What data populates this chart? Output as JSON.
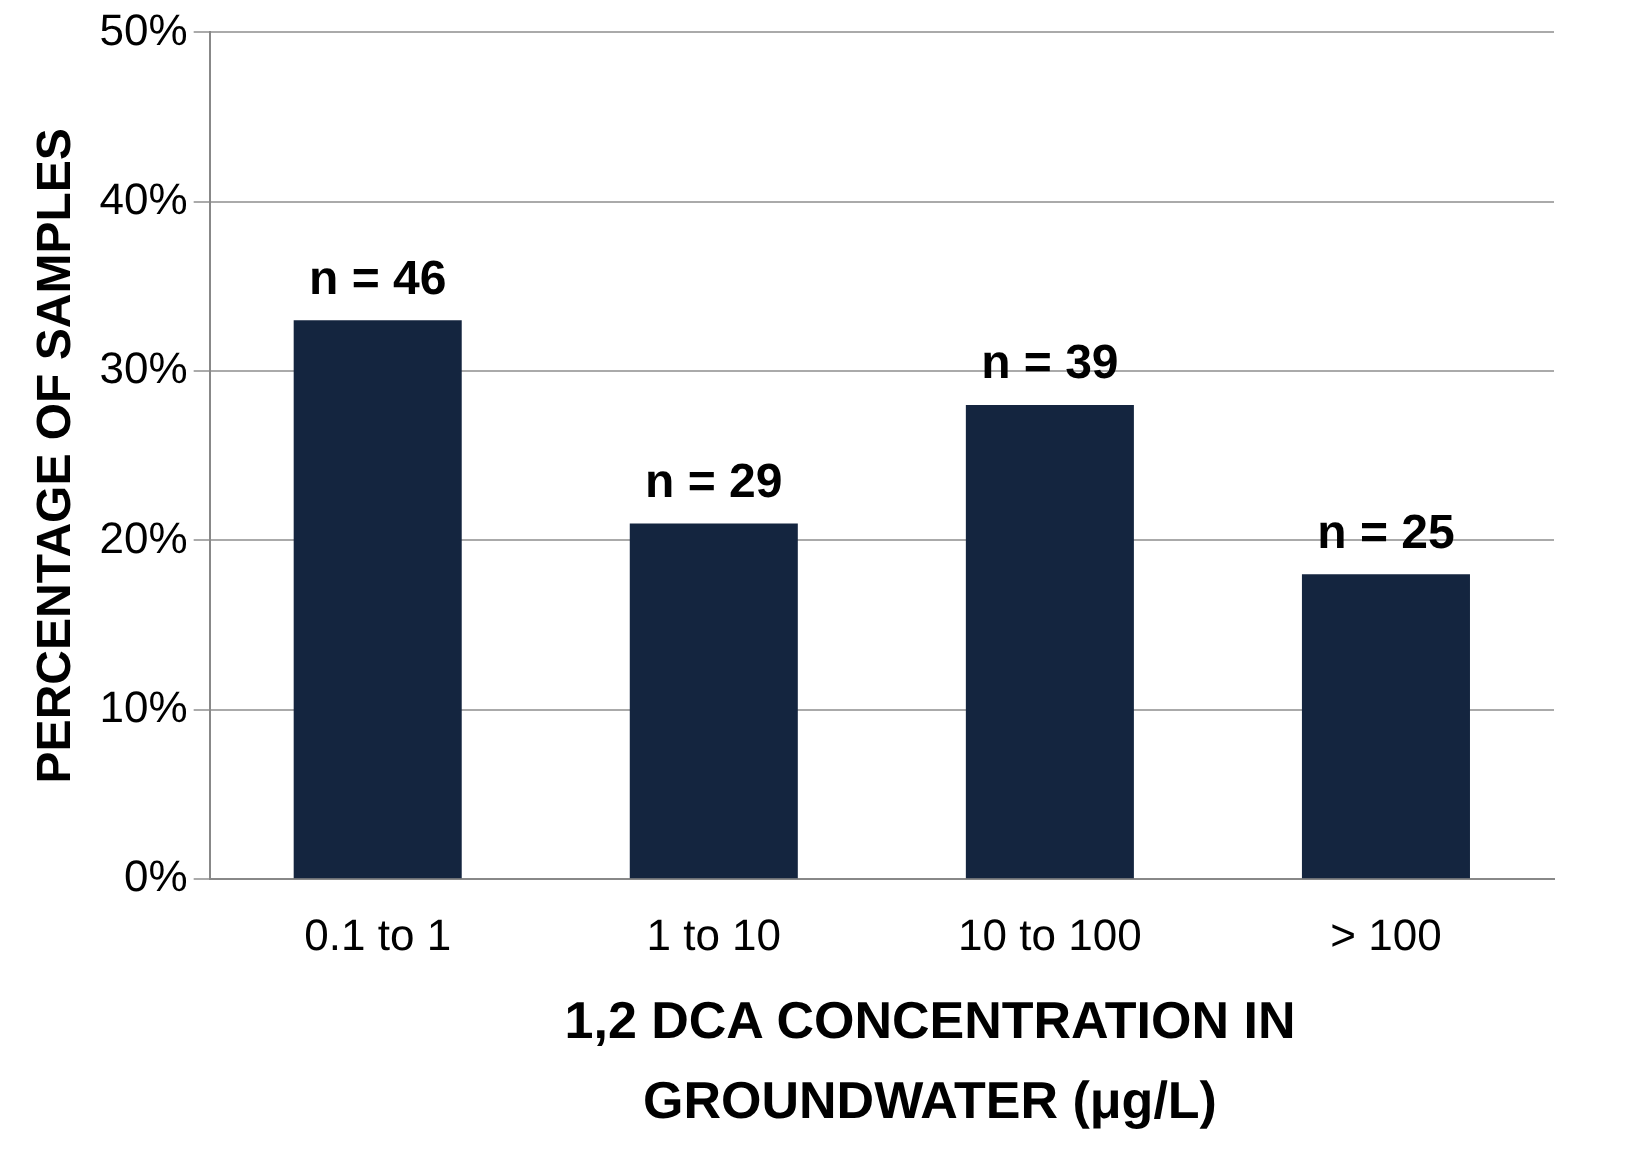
{
  "chart_data": {
    "type": "bar",
    "xlabel": "1,2 DCA CONCENTRATION IN GROUNDWATER (μg/L)",
    "ylabel": "PERCENTAGE OF SAMPLES",
    "categories": [
      "0.1 to 1",
      "1 to 10",
      "10 to 100",
      "> 100"
    ],
    "values": [
      33,
      21,
      28,
      18
    ],
    "color": "#14253f",
    "annotations": [
      {
        "text": "n = 46",
        "x": "0.1 to 1",
        "y": 33
      },
      {
        "text": "n = 29",
        "x": "1 to 10",
        "y": 21
      },
      {
        "text": "n = 39",
        "x": "10 to 100",
        "y": 28
      },
      {
        "text": "n = 25",
        "x": "> 100",
        "y": 18
      }
    ],
    "ylim": [
      0,
      50
    ],
    "yticks": [
      {
        "value": 0,
        "label": "0%"
      },
      {
        "value": 10,
        "label": "10%"
      },
      {
        "value": 20,
        "label": "20%"
      },
      {
        "value": 30,
        "label": "30%"
      },
      {
        "value": 40,
        "label": "40%"
      },
      {
        "value": 50,
        "label": "50%"
      }
    ],
    "grid": "y",
    "legend": false
  }
}
